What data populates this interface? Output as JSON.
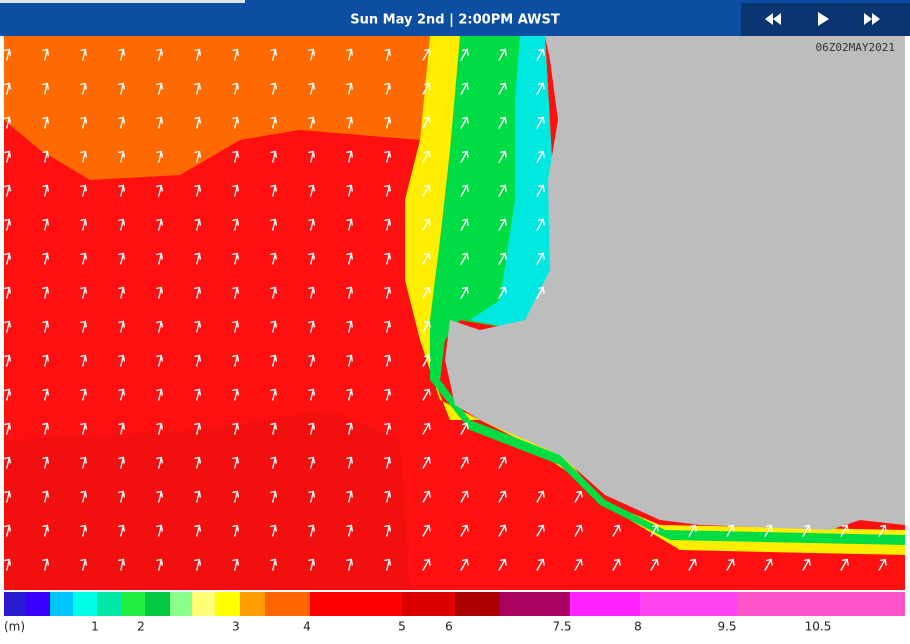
{
  "header": {
    "title": "Sun May 2nd | 2:00PM AWST"
  },
  "map": {
    "timestamp": "06Z02MAY2021"
  },
  "legend": {
    "unit": "(m)",
    "labels": [
      1,
      2,
      3,
      4,
      5,
      6,
      7.5,
      8,
      9.5,
      10.5
    ]
  }
}
